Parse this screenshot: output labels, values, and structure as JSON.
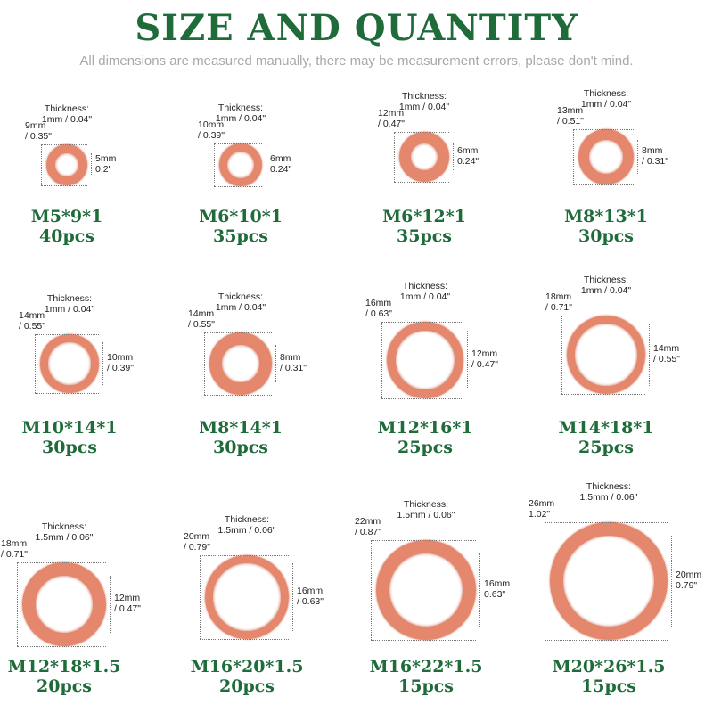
{
  "header": {
    "title": "SIZE AND QUANTITY",
    "subtitle": "All dimensions are measured manually, there may be measurement errors, please don't mind."
  },
  "items": [
    {
      "thickness_label": "Thickness:",
      "thickness": "1mm / 0.04\"",
      "outer": [
        "9mm",
        "/ 0.35\""
      ],
      "inner": [
        "5mm",
        "0.2\""
      ],
      "size": "M5*9*1",
      "quantity": "40pcs"
    },
    {
      "thickness_label": "Thickness:",
      "thickness": "1mm / 0.04\"",
      "outer": [
        "10mm",
        "/ 0.39\""
      ],
      "inner": [
        "6mm",
        "0.24\""
      ],
      "size": "M6*10*1",
      "quantity": "35pcs"
    },
    {
      "thickness_label": "Thickness:",
      "thickness": "1mm / 0.04\"",
      "outer": [
        "12mm",
        "/ 0.47\""
      ],
      "inner": [
        "6mm",
        "0.24\""
      ],
      "size": "M6*12*1",
      "quantity": "35pcs"
    },
    {
      "thickness_label": "Thickness:",
      "thickness": "1mm / 0.04\"",
      "outer": [
        "13mm",
        "/ 0.51\""
      ],
      "inner": [
        "8mm",
        "/ 0.31\""
      ],
      "size": "M8*13*1",
      "quantity": "30pcs"
    },
    {
      "thickness_label": "Thickness:",
      "thickness": "1mm / 0.04\"",
      "outer": [
        "14mm",
        "/ 0.55\""
      ],
      "inner": [
        "10mm",
        "/ 0.39\""
      ],
      "size": "M10*14*1",
      "quantity": "30pcs"
    },
    {
      "thickness_label": "Thickness:",
      "thickness": "1mm / 0.04\"",
      "outer": [
        "14mm",
        "/ 0.55\""
      ],
      "inner": [
        "8mm",
        "/ 0.31\""
      ],
      "size": "M8*14*1",
      "quantity": "30pcs"
    },
    {
      "thickness_label": "Thickness:",
      "thickness": "1mm / 0.04\"",
      "outer": [
        "16mm",
        "/ 0.63\""
      ],
      "inner": [
        "12mm",
        "/ 0.47\""
      ],
      "size": "M12*16*1",
      "quantity": "25pcs"
    },
    {
      "thickness_label": "Thickness:",
      "thickness": "1mm / 0.04\"",
      "outer": [
        "18mm",
        "/ 0.71\""
      ],
      "inner": [
        "14mm",
        "/ 0.55\""
      ],
      "size": "M14*18*1",
      "quantity": "25pcs"
    },
    {
      "thickness_label": "Thickness:",
      "thickness": "1.5mm / 0.06\"",
      "outer": [
        "18mm",
        "/ 0.71\""
      ],
      "inner": [
        "12mm",
        "/ 0.47\""
      ],
      "size": "M12*18*1.5",
      "quantity": "20pcs"
    },
    {
      "thickness_label": "Thickness:",
      "thickness": "1.5mm / 0.06\"",
      "outer": [
        "20mm",
        "/ 0.79\""
      ],
      "inner": [
        "16mm",
        "/ 0.63\""
      ],
      "size": "M16*20*1.5",
      "quantity": "20pcs"
    },
    {
      "thickness_label": "Thickness:",
      "thickness": "1.5mm / 0.06\"",
      "outer": [
        "22mm",
        "/ 0.87\""
      ],
      "inner": [
        "16mm",
        "0.63\""
      ],
      "size": "M16*22*1.5",
      "quantity": "15pcs"
    },
    {
      "thickness_label": "Thickness:",
      "thickness": "1.5mm / 0.06\"",
      "outer": [
        "26mm",
        "1.02\""
      ],
      "inner": [
        "20mm",
        "0.79\""
      ],
      "size": "M20*26*1.5",
      "quantity": "15pcs"
    }
  ]
}
